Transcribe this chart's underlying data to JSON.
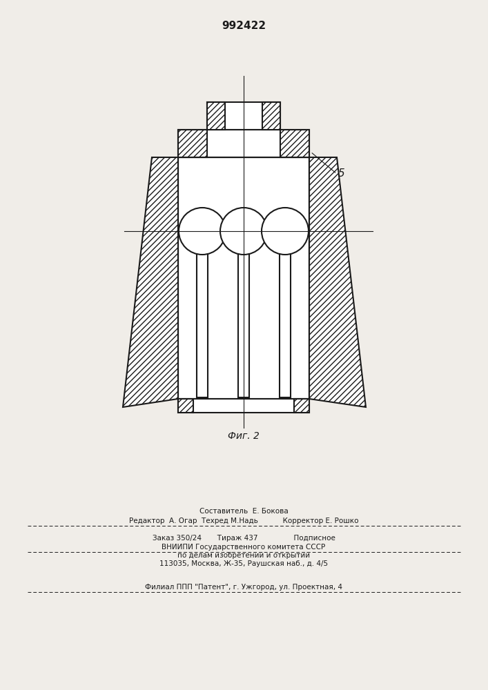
{
  "patent_number": "992422",
  "fig_label": "Фиг. 2",
  "label_5": "5",
  "bg_color": "#f0ede8",
  "line_color": "#1a1a1a",
  "footer_line1": "                    Составитель  Е. Бокова",
  "footer_line2": "Редактор  А. Огар  Техред М.Надь           Корректор Е. Рошко",
  "footer_line3": "Заказ 350/24       Тираж 437                Подписное",
  "footer_line4": "    ВНИИПИ Государственного комитета СССР",
  "footer_line5": "      по делам изобретений и открытий",
  "footer_line6": "    113035, Москва, Ж-35, Раушская наб., д. 4/5",
  "footer_line7": "  Филиал ППП \"Патент\", г. Ужгород, ул. Проектная, 4"
}
